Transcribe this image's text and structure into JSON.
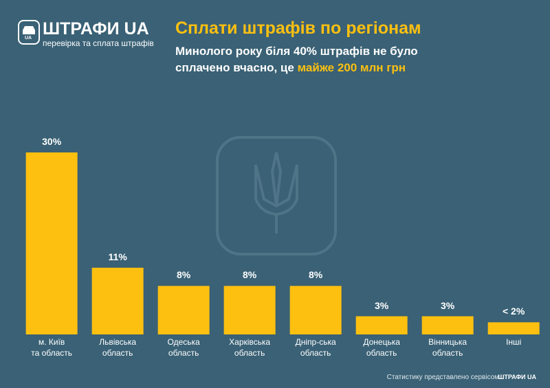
{
  "header": {
    "logo_title": "ШТРАФИ UA",
    "logo_badge": "UA",
    "logo_subtitle": "перевірка та сплата штрафів"
  },
  "chart_data": {
    "type": "bar",
    "title": "Сплати штрафів по регіонам",
    "subtitle": "Минолого року біля 40% штрафів не було сплачено вчасно, це",
    "subtitle_highlight": "майже 200 млн грн",
    "categories": [
      "м. Київ\nта область",
      "Львівська\nобласть",
      "Одеська\nобласть",
      "Харківська\nобласть",
      "Дніпр-ська\nобласть",
      "Донецька\nобласть",
      "Вінницька\nобласть",
      "Інші"
    ],
    "values": [
      30,
      11,
      8,
      8,
      8,
      3,
      3,
      2
    ],
    "value_labels": [
      "30%",
      "11%",
      "8%",
      "8%",
      "8%",
      "3%",
      "3%",
      "< 2%"
    ],
    "color": "#fdc010"
  },
  "footer": {
    "text": "Статистику представлено сервісом",
    "brand": "ШТРАФИ UA"
  }
}
